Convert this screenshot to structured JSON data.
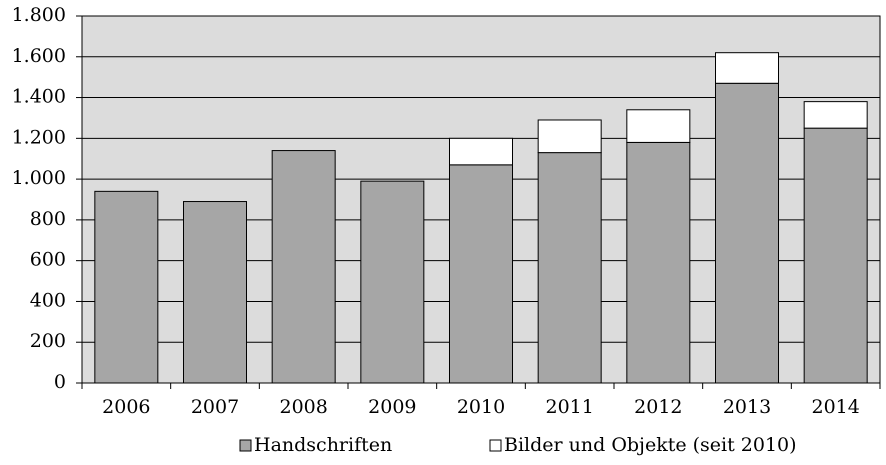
{
  "chart_data": {
    "type": "stacked_bar",
    "categories": [
      "2006",
      "2007",
      "2008",
      "2009",
      "2010",
      "2011",
      "2012",
      "2013",
      "2014"
    ],
    "series": [
      {
        "name": "Handschriften",
        "color": "#a6a6a6",
        "values": [
          940,
          890,
          1140,
          990,
          1070,
          1130,
          1180,
          1470,
          1250
        ]
      },
      {
        "name": "Bilder und Objekte (seit 2010)",
        "color": "#ffffff",
        "values": [
          null,
          null,
          null,
          null,
          130,
          160,
          160,
          150,
          130
        ]
      }
    ],
    "ylim": [
      0,
      1800
    ],
    "yticks": [
      0,
      200,
      400,
      600,
      800,
      {
        "value": 1000,
        "label": "1.000"
      },
      {
        "value": 1200,
        "label": "1.200"
      },
      {
        "value": 1400,
        "label": "1.400"
      },
      {
        "value": 1600,
        "label": "1.600"
      },
      {
        "value": 1800,
        "label": "1.800"
      }
    ],
    "grid": true,
    "legend": "bottom"
  }
}
